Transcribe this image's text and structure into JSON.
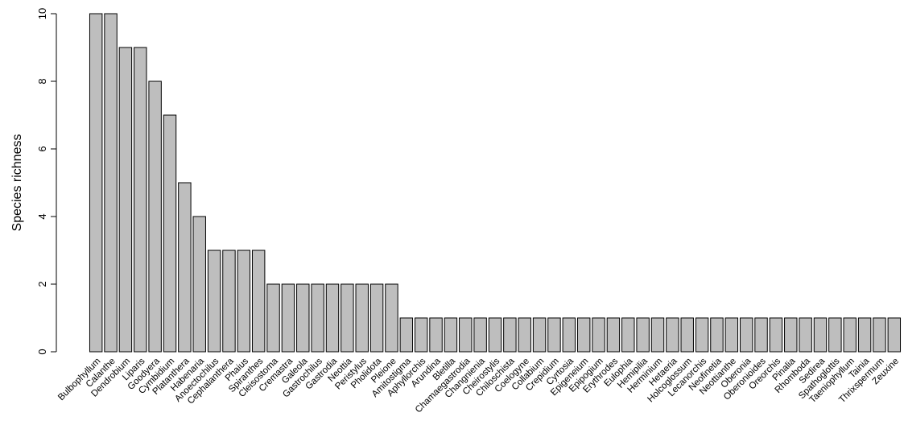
{
  "chart_data": {
    "type": "bar",
    "ylabel": "Species richness",
    "categories": [
      "Bulbophyllum",
      "Calanthe",
      "Dendrobium",
      "Liparis",
      "Goodyera",
      "Cymbidium",
      "Platanthera",
      "Habenaria",
      "Anoectochilus",
      "Cephalanthera",
      "Phaius",
      "Spiranthes",
      "Cleisostoma",
      "Cremastra",
      "Galeola",
      "Gastrochilus",
      "Gastrodia",
      "Neottia",
      "Peristylus",
      "Pholidota",
      "Pleione",
      "Amitostigma",
      "Aphyllorchis",
      "Arundina",
      "Bletilla",
      "Chamaegastrodia",
      "Changnienia",
      "Cheirostylis",
      "Chiloschista",
      "Coelogyne",
      "Collabium",
      "Crepidium",
      "Cyrtosia",
      "Epigeneium",
      "Epipogium",
      "Erythrodes",
      "Eulophia",
      "Hemipilia",
      "Herminium",
      "Hetaeria",
      "Holcoglossum",
      "Lecanorchis",
      "Neofinetia",
      "Neottianthe",
      "Oberonia",
      "Oberonioides",
      "Oreorchis",
      "Pinalia",
      "Rhomboda",
      "Sedirea",
      "Spathoglottis",
      "Taeniophyllum",
      "Tainia",
      "Thrixspermum",
      "Zeuxine"
    ],
    "values": [
      10,
      10,
      9,
      9,
      8,
      7,
      5,
      4,
      3,
      3,
      3,
      3,
      2,
      2,
      2,
      2,
      2,
      2,
      2,
      2,
      2,
      1,
      1,
      1,
      1,
      1,
      1,
      1,
      1,
      1,
      1,
      1,
      1,
      1,
      1,
      1,
      1,
      1,
      1,
      1,
      1,
      1,
      1,
      1,
      1,
      1,
      1,
      1,
      1,
      1,
      1,
      1,
      1,
      1,
      1
    ],
    "color": "#bebebe",
    "ylim": [
      0,
      10
    ],
    "yticks": [
      0,
      2,
      4,
      6,
      8,
      10
    ]
  }
}
